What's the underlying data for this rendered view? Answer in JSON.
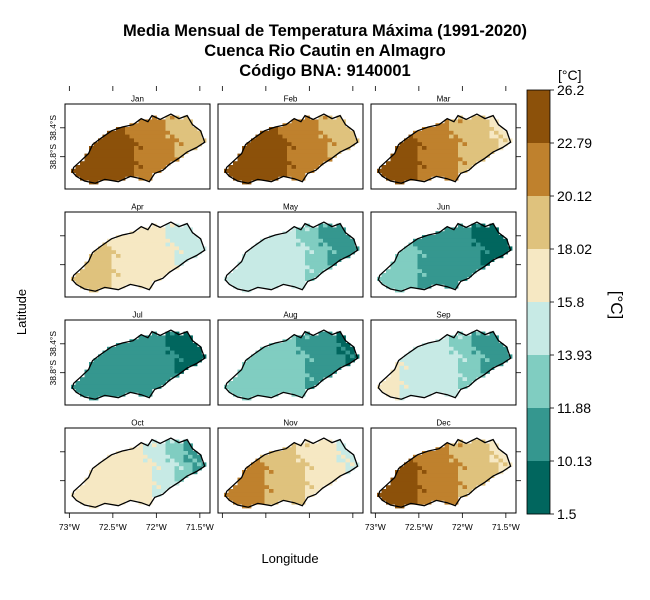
{
  "chart_data": {
    "type": "heatmap",
    "title": "Media Mensual de Temperatura Máxima (1991-2020)",
    "subtitle": "Cuenca Rio Cautin en Almagro",
    "subtitle2": "Código BNA: 9140001",
    "xlabel": "Longitude",
    "ylabel": "Latitude",
    "x_ticks": [
      "73°W",
      "72.5°W",
      "72°W",
      "71.5°W"
    ],
    "y_ticks": [
      "38.4°S",
      "38.8°S"
    ],
    "legend": {
      "unit_label": "[°C]",
      "axis_title": "[°C]",
      "breaks": [
        "26.2",
        "22.79",
        "20.12",
        "18.02",
        "15.8",
        "13.93",
        "11.88",
        "10.13",
        "1.5"
      ],
      "colors": [
        "#8c510a",
        "#bf812d",
        "#dfc27d",
        "#f6e8c3",
        "#c7eae5",
        "#80cdc1",
        "#35978f",
        "#01665e"
      ]
    },
    "panels": [
      {
        "month": "Jan",
        "levels": [
          7,
          7,
          7,
          6,
          6,
          5,
          5
        ]
      },
      {
        "month": "Feb",
        "levels": [
          7,
          7,
          7,
          6,
          6,
          5,
          5
        ]
      },
      {
        "month": "Mar",
        "levels": [
          7,
          7,
          6,
          6,
          5,
          5,
          4
        ]
      },
      {
        "month": "Apr",
        "levels": [
          5,
          5,
          4,
          4,
          4,
          3,
          3
        ]
      },
      {
        "month": "May",
        "levels": [
          3,
          3,
          3,
          3,
          2,
          1,
          1
        ]
      },
      {
        "month": "Jun",
        "levels": [
          2,
          2,
          1,
          1,
          1,
          0,
          0
        ]
      },
      {
        "month": "Jul",
        "levels": [
          1,
          1,
          1,
          1,
          1,
          0,
          0
        ]
      },
      {
        "month": "Aug",
        "levels": [
          2,
          2,
          2,
          2,
          1,
          1,
          0
        ]
      },
      {
        "month": "Sep",
        "levels": [
          4,
          3,
          3,
          3,
          2,
          1,
          1
        ]
      },
      {
        "month": "Oct",
        "levels": [
          4,
          4,
          4,
          4,
          3,
          2,
          1
        ]
      },
      {
        "month": "Nov",
        "levels": [
          6,
          6,
          5,
          5,
          4,
          4,
          3
        ]
      },
      {
        "month": "Dec",
        "levels": [
          7,
          7,
          6,
          6,
          5,
          5,
          4
        ]
      }
    ]
  }
}
